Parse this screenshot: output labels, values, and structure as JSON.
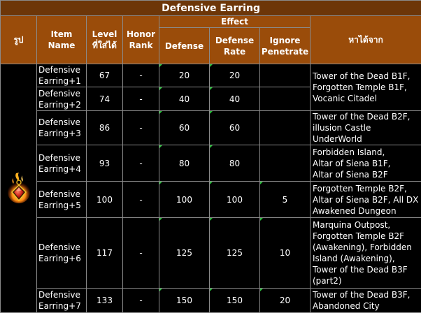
{
  "title": "Defensive Earring",
  "headers": {
    "image": "รูป",
    "item_name": "Item Name",
    "level": "Level ที่ใส่ได้",
    "honor_rank": "Honor Rank",
    "effect": "Effect",
    "defense": "Defense",
    "defense_rate": "Defense Rate",
    "ignore_penetrate": "Ignore Penetrate",
    "where": "หาได้จาก"
  },
  "item_icon": "fire-earring-icon",
  "rows": [
    {
      "name_1": "Defensive",
      "name_2": "Earring+1",
      "level": "67",
      "honor": "-",
      "defense": "20",
      "defense_rate": "20",
      "ignore": "",
      "where": [
        "Tower of the Dead B1F,",
        "Forgotten Temple B1F,",
        "Vocanic Citadel"
      ]
    },
    {
      "name_1": "Defensive",
      "name_2": "Earring+2",
      "level": "74",
      "honor": "-",
      "defense": "40",
      "defense_rate": "40",
      "ignore": ""
    },
    {
      "name_1": "Defensive",
      "name_2": "Earring+3",
      "level": "86",
      "honor": "-",
      "defense": "60",
      "defense_rate": "60",
      "ignore": "",
      "where": [
        "Tower of the Dead B2F,",
        "illusion Castle UnderWorld"
      ]
    },
    {
      "name_1": "Defensive",
      "name_2": "Earring+4",
      "level": "93",
      "honor": "-",
      "defense": "80",
      "defense_rate": "80",
      "ignore": "",
      "where": [
        "Forbidden Island,",
        "Altar of Siena B1F,",
        "Altar of Siena B2F"
      ]
    },
    {
      "name_1": "Defensive",
      "name_2": "Earring+5",
      "level": "100",
      "honor": "-",
      "defense": "100",
      "defense_rate": "100",
      "ignore": "5",
      "where": [
        "Forgotten Temple B2F,",
        "Altar of Siena B2F, All DX",
        "Awakened Dungeon"
      ]
    },
    {
      "name_1": "Defensive",
      "name_2": "Earring+6",
      "level": "117",
      "honor": "-",
      "defense": "125",
      "defense_rate": "125",
      "ignore": "10",
      "where": [
        "Marquina Outpost,",
        "Forgotten Temple B2F",
        "(Awakening), Forbidden",
        "Island (Awakening),",
        "Tower of the Dead B3F",
        "(part2)"
      ]
    },
    {
      "name_1": "Defensive",
      "name_2": "Earring+7",
      "level": "133",
      "honor": "-",
      "defense": "150",
      "defense_rate": "150",
      "ignore": "20",
      "where": [
        "Tower of the Dead B3F,",
        "Abandoned City"
      ]
    }
  ]
}
